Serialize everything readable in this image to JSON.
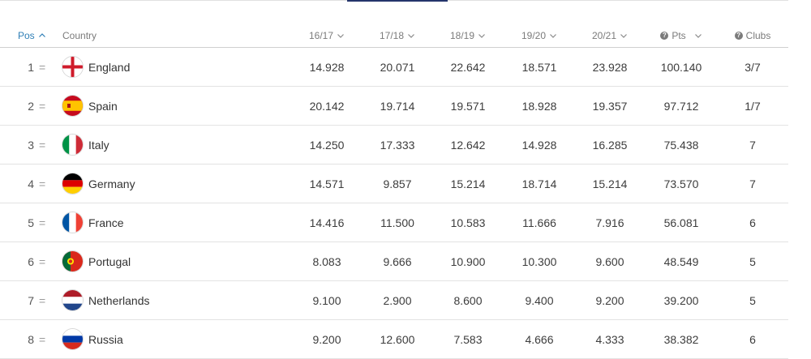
{
  "header": {
    "pos": "Pos",
    "country": "Country",
    "seasons": [
      "16/17",
      "17/18",
      "18/19",
      "19/20",
      "20/21"
    ],
    "pts": "Pts",
    "clubs": "Clubs"
  },
  "rows": [
    {
      "rank": "1",
      "trend": "=",
      "country": "England",
      "flag": "england-flag-icon",
      "s": [
        "14.928",
        "20.071",
        "22.642",
        "18.571",
        "23.928"
      ],
      "pts": "100.140",
      "clubs": "3/7"
    },
    {
      "rank": "2",
      "trend": "=",
      "country": "Spain",
      "flag": "spain-flag-icon",
      "s": [
        "20.142",
        "19.714",
        "19.571",
        "18.928",
        "19.357"
      ],
      "pts": "97.712",
      "clubs": "1/7"
    },
    {
      "rank": "3",
      "trend": "=",
      "country": "Italy",
      "flag": "italy-flag-icon",
      "s": [
        "14.250",
        "17.333",
        "12.642",
        "14.928",
        "16.285"
      ],
      "pts": "75.438",
      "clubs": "7"
    },
    {
      "rank": "4",
      "trend": "=",
      "country": "Germany",
      "flag": "germany-flag-icon",
      "s": [
        "14.571",
        "9.857",
        "15.214",
        "18.714",
        "15.214"
      ],
      "pts": "73.570",
      "clubs": "7"
    },
    {
      "rank": "5",
      "trend": "=",
      "country": "France",
      "flag": "france-flag-icon",
      "s": [
        "14.416",
        "11.500",
        "10.583",
        "11.666",
        "7.916"
      ],
      "pts": "56.081",
      "clubs": "6"
    },
    {
      "rank": "6",
      "trend": "=",
      "country": "Portugal",
      "flag": "portugal-flag-icon",
      "s": [
        "8.083",
        "9.666",
        "10.900",
        "10.300",
        "9.600"
      ],
      "pts": "48.549",
      "clubs": "5"
    },
    {
      "rank": "7",
      "trend": "=",
      "country": "Netherlands",
      "flag": "netherlands-flag-icon",
      "s": [
        "9.100",
        "2.900",
        "8.600",
        "9.400",
        "9.200"
      ],
      "pts": "39.200",
      "clubs": "5"
    },
    {
      "rank": "8",
      "trend": "=",
      "country": "Russia",
      "flag": "russia-flag-icon",
      "s": [
        "9.200",
        "12.600",
        "7.583",
        "4.666",
        "4.333"
      ],
      "pts": "38.382",
      "clubs": "6"
    }
  ]
}
